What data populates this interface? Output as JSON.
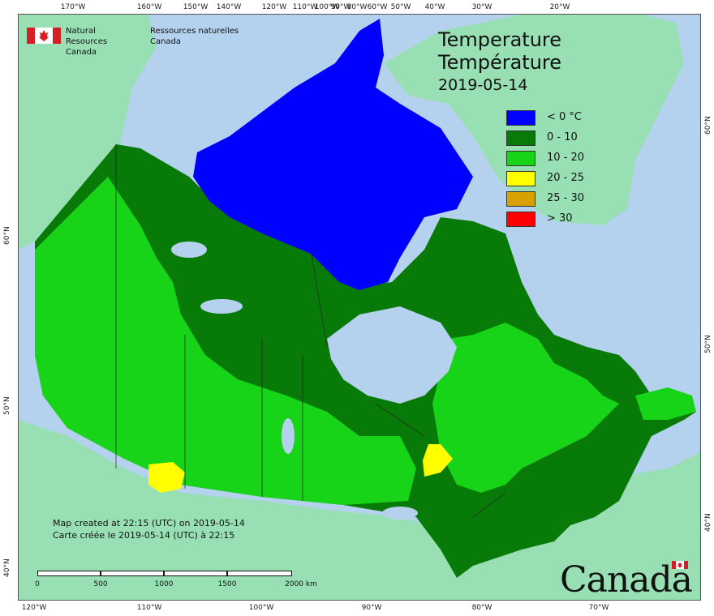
{
  "org": {
    "name_en_1": "Natural Resources",
    "name_en_2": "Canada",
    "name_fr_1": "Ressources naturelles",
    "name_fr_2": "Canada"
  },
  "title": {
    "line1": "Temperature",
    "line2": "Température",
    "date": "2019-05-14"
  },
  "legend": [
    {
      "label": "< 0 °C",
      "color": "#0000ff"
    },
    {
      "label": "0 - 10",
      "color": "#087a08"
    },
    {
      "label": "10 - 20",
      "color": "#18d418"
    },
    {
      "label": "20 - 25",
      "color": "#ffff00"
    },
    {
      "label": "25 - 30",
      "color": "#d8a000"
    },
    {
      "label": "> 30",
      "color": "#ff0000"
    }
  ],
  "created": {
    "line_en": "Map created at 22:15 (UTC) on 2019-05-14",
    "line_fr": "Carte créée le 2019-05-14 (UTC) à 22:15"
  },
  "scale": {
    "labels": [
      "0",
      "500",
      "1000",
      "1500",
      "2000  km"
    ]
  },
  "wordmark": "Canada",
  "graticule": {
    "top": [
      "170°W",
      "160°W",
      "150°W",
      "140°W",
      "120°W",
      "110°W",
      "100°W",
      "90°W",
      "80°W",
      "60°W",
      "50°W",
      "40°W",
      "30°W",
      "20°W"
    ],
    "bottom": [
      "120°W",
      "110°W",
      "100°W",
      "90°W",
      "80°W",
      "70°W"
    ],
    "left": [
      "60°N",
      "50°N",
      "40°N"
    ],
    "right": [
      "60°N",
      "50°N",
      "40°N"
    ]
  },
  "colors": {
    "ocean": "#b4d2ee",
    "land_outside": "#98e0b4",
    "lakes": "#b4d2ee"
  }
}
